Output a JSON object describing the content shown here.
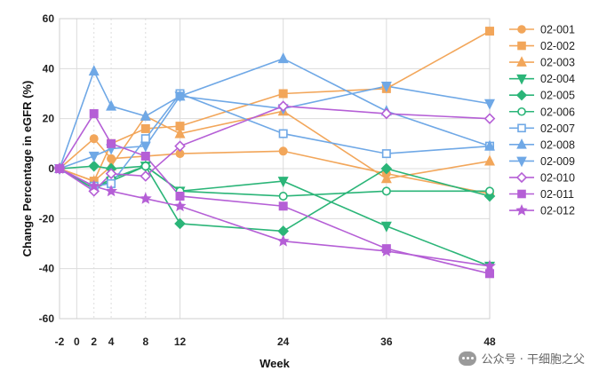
{
  "chart_data": {
    "type": "line",
    "xlabel": "Week",
    "ylabel": "Change Percentage in eGFR (%)",
    "x_ticks": [
      -2,
      0,
      2,
      4,
      8,
      12,
      24,
      36,
      48
    ],
    "y_ticks": [
      -60,
      -40,
      -20,
      0,
      20,
      40,
      60
    ],
    "ylim": [
      -60,
      60
    ],
    "xlim": [
      -2,
      48
    ],
    "grid": true,
    "legend_position": "right",
    "series": [
      {
        "name": "02-001",
        "color": "#f2a65a",
        "marker": "circle",
        "x": [
          -2,
          2,
          4,
          8,
          12,
          24,
          36,
          48
        ],
        "y": [
          0,
          12,
          4,
          5,
          6,
          7,
          -2,
          -10
        ]
      },
      {
        "name": "02-002",
        "color": "#f2a65a",
        "marker": "square",
        "x": [
          -2,
          2,
          4,
          8,
          12,
          24,
          36,
          48
        ],
        "y": [
          0,
          -5,
          10,
          16,
          17,
          30,
          32,
          55
        ]
      },
      {
        "name": "02-003",
        "color": "#f2a65a",
        "marker": "triangle",
        "x": [
          -2,
          2,
          4,
          8,
          12,
          24,
          36,
          48
        ],
        "y": [
          0,
          -5,
          1,
          21,
          14,
          23,
          -4,
          3
        ]
      },
      {
        "name": "02-004",
        "color": "#2bb578",
        "marker": "triangle-down",
        "x": [
          -2,
          2,
          4,
          8,
          12,
          24,
          36,
          48
        ],
        "y": [
          0,
          -8,
          -5,
          1,
          -9,
          -5,
          -23,
          -39
        ]
      },
      {
        "name": "02-005",
        "color": "#2bb578",
        "marker": "diamond",
        "x": [
          -2,
          2,
          4,
          8,
          12,
          24,
          36,
          48
        ],
        "y": [
          0,
          1,
          0,
          1,
          -22,
          -25,
          0,
          -11
        ]
      },
      {
        "name": "02-006",
        "color": "#2bb578",
        "marker": "circle-open",
        "x": [
          -2,
          2,
          4,
          8,
          12,
          24,
          36,
          48
        ],
        "y": [
          0,
          -8,
          -4,
          1,
          -9,
          -11,
          -9,
          -9
        ]
      },
      {
        "name": "02-007",
        "color": "#6fa8e6",
        "marker": "square-open",
        "x": [
          -2,
          2,
          4,
          8,
          12,
          24,
          36,
          48
        ],
        "y": [
          0,
          -7,
          -6,
          12,
          30,
          14,
          6,
          9
        ]
      },
      {
        "name": "02-008",
        "color": "#6fa8e6",
        "marker": "triangle",
        "x": [
          -2,
          2,
          4,
          8,
          12,
          24,
          36,
          48
        ],
        "y": [
          0,
          39,
          25,
          21,
          29,
          44,
          23,
          9
        ]
      },
      {
        "name": "02-009",
        "color": "#6fa8e6",
        "marker": "triangle-down",
        "x": [
          -2,
          2,
          4,
          8,
          12,
          24,
          36,
          48
        ],
        "y": [
          0,
          5,
          8,
          9,
          29,
          24,
          33,
          26
        ]
      },
      {
        "name": "02-010",
        "color": "#b55fd6",
        "marker": "diamond-open",
        "x": [
          -2,
          2,
          4,
          8,
          12,
          24,
          36,
          48
        ],
        "y": [
          0,
          -9,
          -2,
          -3,
          9,
          25,
          22,
          20
        ]
      },
      {
        "name": "02-011",
        "color": "#b55fd6",
        "marker": "square",
        "x": [
          -2,
          2,
          4,
          8,
          12,
          24,
          36,
          48
        ],
        "y": [
          0,
          22,
          10,
          5,
          -11,
          -15,
          -32,
          -42
        ]
      },
      {
        "name": "02-012",
        "color": "#b55fd6",
        "marker": "star",
        "x": [
          -2,
          2,
          4,
          8,
          12,
          24,
          36,
          48
        ],
        "y": [
          0,
          -7,
          -9,
          -12,
          -15,
          -29,
          -33,
          -39
        ]
      }
    ]
  },
  "watermark": {
    "text": "公众号 · 干细胞之父"
  }
}
